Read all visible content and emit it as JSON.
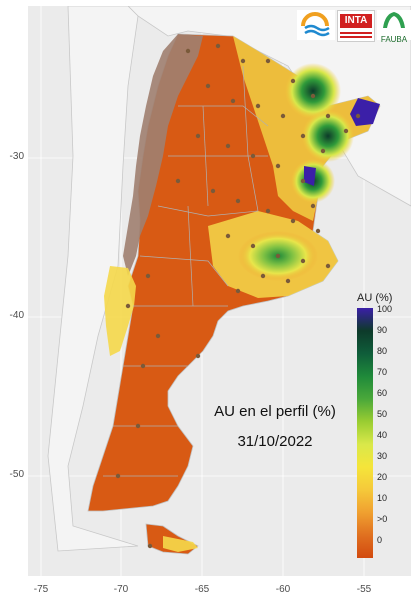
{
  "map": {
    "title": "AU en el perfil (%)",
    "date": "31/10/2022",
    "y_ticks": [
      "-30",
      "-40",
      "-50"
    ],
    "x_ticks": [
      "-75",
      "-70",
      "-65",
      "-60",
      "-55"
    ],
    "colors": {
      "background": "#ebebeb",
      "land_outside": "#f7f7f7",
      "borders": "#c8c8c8",
      "dry": "#d85a14",
      "very_dry": "#c94a0f",
      "mountains": "#a08070",
      "stations": "#7a5a3a"
    }
  },
  "legend": {
    "title": "AU (%)",
    "labels": [
      "100",
      "90",
      "80",
      "70",
      "60",
      "50",
      "40",
      "30",
      "20",
      "10",
      ">0",
      "0"
    ],
    "colors": [
      "#3b1fa8",
      "#0d3a2a",
      "#0f5d3a",
      "#1f8a3a",
      "#4aa83a",
      "#9acd32",
      "#d9e84a",
      "#f5e53a",
      "#f5c93a",
      "#f0a030",
      "#e07020",
      "#d24a0f"
    ]
  },
  "logos": [
    {
      "name": "logo-1",
      "text": ""
    },
    {
      "name": "inta",
      "text": "INTA"
    },
    {
      "name": "fauba",
      "text": "FAUBA"
    }
  ]
}
